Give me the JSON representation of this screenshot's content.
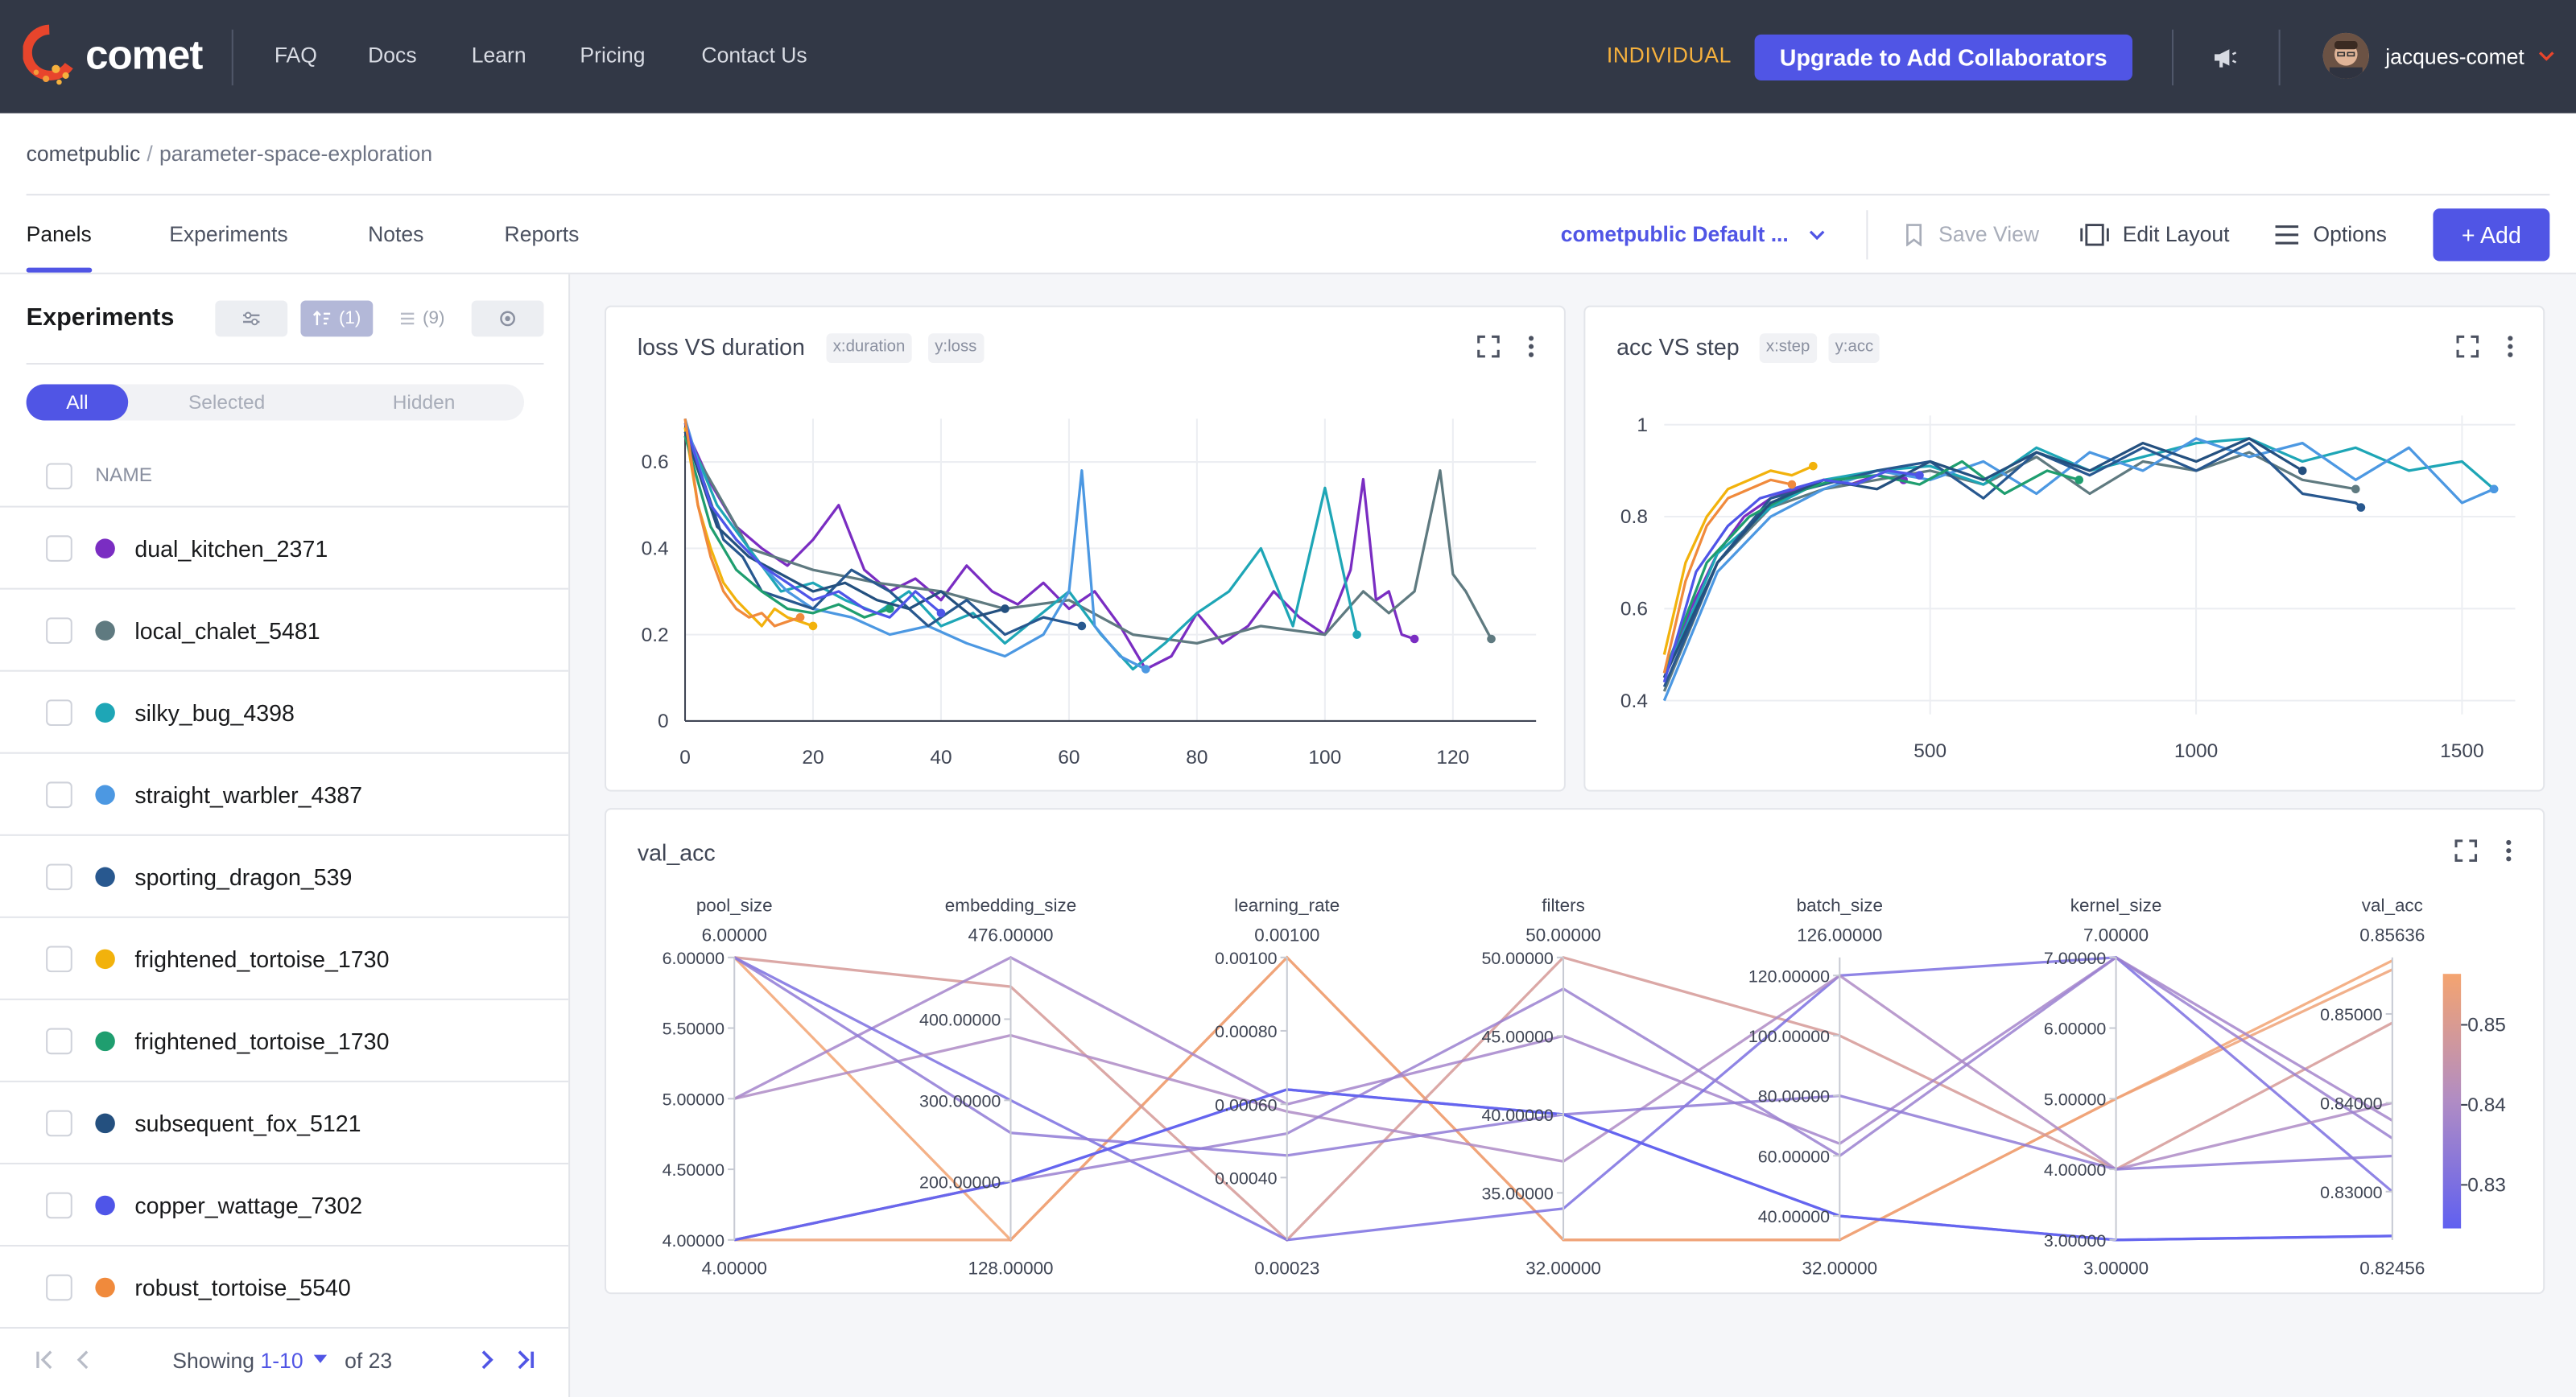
{
  "nav": {
    "brand": "comet",
    "links": [
      "FAQ",
      "Docs",
      "Learn",
      "Pricing",
      "Contact Us"
    ],
    "plan": "INDIVIDUAL",
    "upgrade_label": "Upgrade to Add Collaborators",
    "username": "jacques-comet"
  },
  "breadcrumb": {
    "workspace": "cometpublic",
    "separator": "/",
    "project": "parameter-space-exploration"
  },
  "tabs": [
    "Panels",
    "Experiments",
    "Notes",
    "Reports"
  ],
  "view": {
    "selected": "cometpublic Default ...",
    "save_label": "Save View",
    "edit_label": "Edit Layout",
    "options_label": "Options",
    "add_label": "Add"
  },
  "sidebar": {
    "title": "Experiments",
    "sort_count": "(1)",
    "group_count": "(9)",
    "segments": [
      "All",
      "Selected",
      "Hidden"
    ],
    "column_header": "NAME",
    "experiments": [
      {
        "name": "dual_kitchen_2371",
        "color": "#7a2dc2"
      },
      {
        "name": "local_chalet_5481",
        "color": "#5f7a80"
      },
      {
        "name": "silky_bug_4398",
        "color": "#1ea6b6"
      },
      {
        "name": "straight_warbler_4387",
        "color": "#4c98e2"
      },
      {
        "name": "sporting_dragon_539",
        "color": "#28588f"
      },
      {
        "name": "frightened_tortoise_1730",
        "color": "#f2b20c"
      },
      {
        "name": "frightened_tortoise_1730",
        "color": "#1f9e6f"
      },
      {
        "name": "subsequent_fox_5121",
        "color": "#24507f"
      },
      {
        "name": "copper_wattage_7302",
        "color": "#4f55e8"
      },
      {
        "name": "robust_tortoise_5540",
        "color": "#f08a3c"
      }
    ],
    "pager": {
      "prefix": "Showing",
      "range": "1-10",
      "suffix": "of 23"
    }
  },
  "panels": {
    "loss": {
      "title": "loss VS duration",
      "x_chip": "x:duration",
      "y_chip": "y:loss"
    },
    "acc": {
      "title": "acc VS step",
      "x_chip": "x:step",
      "y_chip": "y:acc"
    },
    "val": {
      "title": "val_acc"
    }
  },
  "chart_data": [
    {
      "type": "line",
      "title": "loss VS duration",
      "xlabel": "duration",
      "ylabel": "loss",
      "xlim": [
        0,
        133
      ],
      "ylim": [
        0,
        0.7
      ],
      "x_ticks": [
        0,
        20,
        40,
        60,
        80,
        100,
        120
      ],
      "y_ticks": [
        0,
        0.2,
        0.4,
        0.6
      ],
      "grid": true,
      "series": [
        {
          "color": "#7a2dc2",
          "x": [
            0,
            4,
            8,
            12,
            16,
            20,
            24,
            28,
            32,
            36,
            40,
            44,
            48,
            52,
            56,
            60,
            64,
            68,
            72,
            76,
            80,
            84,
            88,
            92,
            96,
            100,
            104,
            106,
            108,
            110,
            112,
            114
          ],
          "y": [
            0.68,
            0.55,
            0.45,
            0.4,
            0.36,
            0.42,
            0.5,
            0.35,
            0.3,
            0.33,
            0.28,
            0.36,
            0.3,
            0.27,
            0.32,
            0.26,
            0.3,
            0.22,
            0.12,
            0.15,
            0.25,
            0.18,
            0.22,
            0.3,
            0.24,
            0.2,
            0.35,
            0.56,
            0.28,
            0.3,
            0.2,
            0.19
          ]
        },
        {
          "color": "#5f7a80",
          "x": [
            0,
            10,
            20,
            30,
            40,
            50,
            60,
            70,
            80,
            90,
            100,
            106,
            110,
            114,
            118,
            120,
            122,
            126
          ],
          "y": [
            0.66,
            0.4,
            0.35,
            0.32,
            0.3,
            0.26,
            0.28,
            0.2,
            0.18,
            0.22,
            0.2,
            0.3,
            0.25,
            0.3,
            0.58,
            0.34,
            0.3,
            0.19
          ]
        },
        {
          "color": "#1ea6b6",
          "x": [
            0,
            5,
            10,
            15,
            20,
            25,
            30,
            35,
            40,
            45,
            50,
            55,
            60,
            65,
            70,
            75,
            80,
            85,
            90,
            95,
            100,
            105
          ],
          "y": [
            0.68,
            0.5,
            0.4,
            0.3,
            0.32,
            0.28,
            0.25,
            0.3,
            0.22,
            0.25,
            0.18,
            0.24,
            0.3,
            0.2,
            0.12,
            0.18,
            0.25,
            0.3,
            0.4,
            0.22,
            0.54,
            0.2
          ]
        },
        {
          "color": "#4c98e2",
          "x": [
            0,
            4,
            8,
            12,
            16,
            20,
            26,
            32,
            38,
            44,
            50,
            56,
            60,
            62,
            64,
            68,
            72
          ],
          "y": [
            0.7,
            0.5,
            0.42,
            0.36,
            0.3,
            0.26,
            0.24,
            0.2,
            0.22,
            0.18,
            0.15,
            0.2,
            0.3,
            0.58,
            0.22,
            0.15,
            0.12
          ]
        },
        {
          "color": "#28588f",
          "x": [
            0,
            3,
            6,
            9,
            12,
            16,
            20,
            26,
            32,
            38,
            44,
            50,
            56,
            62
          ],
          "y": [
            0.66,
            0.55,
            0.42,
            0.38,
            0.3,
            0.28,
            0.26,
            0.35,
            0.3,
            0.22,
            0.28,
            0.2,
            0.24,
            0.22
          ]
        },
        {
          "color": "#f2b20c",
          "x": [
            0,
            2,
            4,
            6,
            8,
            10,
            12,
            14,
            16,
            18,
            20
          ],
          "y": [
            0.68,
            0.5,
            0.4,
            0.32,
            0.28,
            0.25,
            0.22,
            0.26,
            0.24,
            0.23,
            0.22
          ]
        },
        {
          "color": "#1f9e6f",
          "x": [
            0,
            4,
            8,
            12,
            16,
            20,
            24,
            28,
            32
          ],
          "y": [
            0.66,
            0.45,
            0.35,
            0.3,
            0.26,
            0.25,
            0.27,
            0.24,
            0.26
          ]
        },
        {
          "color": "#24507f",
          "x": [
            0,
            5,
            10,
            15,
            20,
            25,
            30,
            35,
            40,
            45,
            50
          ],
          "y": [
            0.67,
            0.45,
            0.38,
            0.34,
            0.3,
            0.32,
            0.28,
            0.26,
            0.3,
            0.24,
            0.26
          ]
        },
        {
          "color": "#4f55e8",
          "x": [
            0,
            4,
            8,
            12,
            16,
            20,
            24,
            28,
            32,
            36,
            40
          ],
          "y": [
            0.69,
            0.5,
            0.42,
            0.36,
            0.32,
            0.28,
            0.3,
            0.26,
            0.24,
            0.3,
            0.25
          ]
        },
        {
          "color": "#f08a3c",
          "x": [
            0,
            2,
            4,
            6,
            8,
            10,
            12,
            14,
            16,
            18
          ],
          "y": [
            0.7,
            0.5,
            0.38,
            0.3,
            0.26,
            0.24,
            0.25,
            0.22,
            0.23,
            0.24
          ]
        }
      ]
    },
    {
      "type": "line",
      "title": "acc VS step",
      "xlabel": "step",
      "ylabel": "acc",
      "xlim": [
        0,
        1600
      ],
      "ylim": [
        0.37,
        1.02
      ],
      "x_ticks": [
        500,
        1000,
        1500
      ],
      "y_ticks": [
        0.4,
        0.6,
        0.8,
        1
      ],
      "grid": true,
      "series": [
        {
          "color": "#7a2dc2",
          "x": [
            0,
            50,
            100,
            150,
            200,
            250,
            300,
            350,
            400,
            450
          ],
          "y": [
            0.45,
            0.6,
            0.72,
            0.8,
            0.84,
            0.86,
            0.88,
            0.87,
            0.89,
            0.88
          ]
        },
        {
          "color": "#5f7a80",
          "x": [
            0,
            100,
            200,
            300,
            400,
            500,
            600,
            700,
            800,
            900,
            1000,
            1100,
            1200,
            1300
          ],
          "y": [
            0.42,
            0.7,
            0.82,
            0.86,
            0.88,
            0.9,
            0.87,
            0.93,
            0.85,
            0.92,
            0.9,
            0.94,
            0.88,
            0.86
          ]
        },
        {
          "color": "#1ea6b6",
          "x": [
            0,
            100,
            200,
            300,
            400,
            500,
            600,
            700,
            800,
            900,
            1000,
            1100,
            1200,
            1300,
            1400,
            1500,
            1560
          ],
          "y": [
            0.45,
            0.72,
            0.82,
            0.88,
            0.9,
            0.91,
            0.87,
            0.95,
            0.9,
            0.93,
            0.96,
            0.97,
            0.92,
            0.95,
            0.9,
            0.92,
            0.86
          ]
        },
        {
          "color": "#4c98e2",
          "x": [
            0,
            100,
            200,
            300,
            400,
            500,
            600,
            700,
            800,
            900,
            1000,
            1100,
            1200,
            1300,
            1400,
            1500,
            1560
          ],
          "y": [
            0.4,
            0.68,
            0.8,
            0.86,
            0.9,
            0.88,
            0.92,
            0.85,
            0.94,
            0.9,
            0.97,
            0.93,
            0.96,
            0.88,
            0.95,
            0.83,
            0.86
          ]
        },
        {
          "color": "#28588f",
          "x": [
            0,
            100,
            200,
            300,
            400,
            500,
            600,
            700,
            800,
            900,
            1000,
            1100,
            1200,
            1300,
            1310
          ],
          "y": [
            0.43,
            0.7,
            0.84,
            0.87,
            0.9,
            0.92,
            0.84,
            0.94,
            0.89,
            0.95,
            0.9,
            0.96,
            0.85,
            0.83,
            0.82
          ]
        },
        {
          "color": "#f2b20c",
          "x": [
            0,
            40,
            80,
            120,
            160,
            200,
            240,
            280
          ],
          "y": [
            0.5,
            0.7,
            0.8,
            0.86,
            0.88,
            0.9,
            0.89,
            0.91
          ]
        },
        {
          "color": "#1f9e6f",
          "x": [
            0,
            80,
            160,
            240,
            320,
            400,
            480,
            560,
            640,
            720,
            780
          ],
          "y": [
            0.46,
            0.7,
            0.8,
            0.85,
            0.88,
            0.89,
            0.87,
            0.92,
            0.85,
            0.9,
            0.88
          ]
        },
        {
          "color": "#24507f",
          "x": [
            0,
            100,
            200,
            300,
            400,
            500,
            600,
            700,
            800,
            900,
            1000,
            1100,
            1200
          ],
          "y": [
            0.45,
            0.7,
            0.83,
            0.88,
            0.86,
            0.92,
            0.88,
            0.94,
            0.9,
            0.96,
            0.92,
            0.97,
            0.9
          ]
        },
        {
          "color": "#4f55e8",
          "x": [
            0,
            60,
            120,
            180,
            240,
            300,
            360,
            420,
            480
          ],
          "y": [
            0.44,
            0.68,
            0.78,
            0.84,
            0.86,
            0.88,
            0.87,
            0.9,
            0.89
          ]
        },
        {
          "color": "#f08a3c",
          "x": [
            0,
            40,
            80,
            120,
            160,
            200,
            240
          ],
          "y": [
            0.46,
            0.66,
            0.78,
            0.84,
            0.86,
            0.88,
            0.87
          ]
        }
      ]
    },
    {
      "type": "parallel_coordinates",
      "title": "val_acc",
      "color_axis": "val_acc",
      "color_range": [
        0.82456,
        0.85636
      ],
      "colorbar_ticks": [
        "0.85",
        "0.84",
        "0.83"
      ],
      "axes": [
        {
          "name": "pool_size",
          "top": "6.00000",
          "bottom": "4.00000",
          "min": 4,
          "max": 6,
          "ticks": [
            {
              "v": 6,
              "l": "6.00000"
            },
            {
              "v": 5.5,
              "l": "5.50000"
            },
            {
              "v": 5,
              "l": "5.00000"
            },
            {
              "v": 4.5,
              "l": "4.50000"
            },
            {
              "v": 4,
              "l": "4.00000"
            }
          ]
        },
        {
          "name": "embedding_size",
          "top": "476.00000",
          "bottom": "128.00000",
          "min": 128,
          "max": 476,
          "ticks": [
            {
              "v": 400,
              "l": "400.00000"
            },
            {
              "v": 300,
              "l": "300.00000"
            },
            {
              "v": 200,
              "l": "200.00000"
            }
          ]
        },
        {
          "name": "learning_rate",
          "top": "0.00100",
          "bottom": "0.00023",
          "min": 0.00023,
          "max": 0.001,
          "ticks": [
            {
              "v": 0.001,
              "l": "0.00100"
            },
            {
              "v": 0.0008,
              "l": "0.00080"
            },
            {
              "v": 0.0006,
              "l": "0.00060"
            },
            {
              "v": 0.0004,
              "l": "0.00040"
            }
          ]
        },
        {
          "name": "filters",
          "top": "50.00000",
          "bottom": "32.00000",
          "min": 32,
          "max": 50,
          "ticks": [
            {
              "v": 50,
              "l": "50.00000"
            },
            {
              "v": 45,
              "l": "45.00000"
            },
            {
              "v": 40,
              "l": "40.00000"
            },
            {
              "v": 35,
              "l": "35.00000"
            }
          ]
        },
        {
          "name": "batch_size",
          "top": "126.00000",
          "bottom": "32.00000",
          "min": 32,
          "max": 126,
          "ticks": [
            {
              "v": 120,
              "l": "120.00000"
            },
            {
              "v": 100,
              "l": "100.00000"
            },
            {
              "v": 80,
              "l": "80.00000"
            },
            {
              "v": 60,
              "l": "60.00000"
            },
            {
              "v": 40,
              "l": "40.00000"
            }
          ]
        },
        {
          "name": "kernel_size",
          "top": "7.00000",
          "bottom": "3.00000",
          "min": 3,
          "max": 7,
          "ticks": [
            {
              "v": 7,
              "l": "7.00000"
            },
            {
              "v": 6,
              "l": "6.00000"
            },
            {
              "v": 5,
              "l": "5.00000"
            },
            {
              "v": 4,
              "l": "4.00000"
            },
            {
              "v": 3,
              "l": "3.00000"
            }
          ]
        },
        {
          "name": "val_acc",
          "top": "0.85636",
          "bottom": "0.82456",
          "min": 0.82456,
          "max": 0.85636,
          "ticks": [
            {
              "v": 0.85,
              "l": "0.85000"
            },
            {
              "v": 0.84,
              "l": "0.84000"
            },
            {
              "v": 0.83,
              "l": "0.83000"
            }
          ]
        }
      ],
      "lines": [
        [
          6,
          128,
          0.001,
          32,
          32,
          5,
          0.856
        ],
        [
          4,
          128,
          0.001,
          32,
          32,
          5,
          0.855
        ],
        [
          6,
          440,
          0.00023,
          50,
          100,
          4,
          0.849
        ],
        [
          5,
          476,
          0.0006,
          45,
          64,
          7,
          0.838
        ],
        [
          4,
          200,
          0.00064,
          40,
          40,
          3,
          0.825
        ],
        [
          6,
          300,
          0.00023,
          34,
          120,
          7,
          0.83
        ],
        [
          5,
          380,
          0.00058,
          37,
          120,
          4,
          0.84
        ],
        [
          4,
          200,
          0.00052,
          48,
          60,
          7,
          0.836
        ],
        [
          6,
          260,
          0.00046,
          40,
          80,
          4,
          0.834
        ],
        [
          4,
          200,
          0.00064,
          40,
          40,
          3,
          0.825
        ]
      ]
    }
  ]
}
